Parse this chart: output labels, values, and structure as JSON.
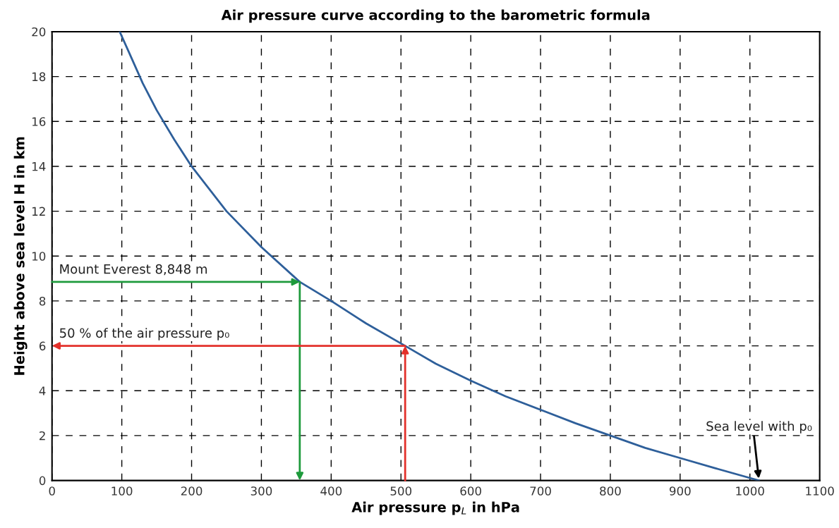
{
  "chart_data": {
    "type": "line",
    "title": "Air pressure curve according to the barometric formula",
    "xlabel": "Air pressure p$_{L}$ in hPa",
    "ylabel": "Height above sea level H in km",
    "series": [
      {
        "color": "#2e5f9a",
        "x": [
          97,
          110,
          120,
          130,
          150,
          175,
          200,
          250,
          300,
          355,
          400,
          450,
          506,
          550,
          600,
          650,
          700,
          750,
          800,
          850,
          900,
          950,
          1013
        ],
        "values": [
          20,
          19.1,
          18.4,
          17.7,
          16.5,
          15.2,
          14.0,
          12.0,
          10.4,
          8.85,
          8.0,
          7.0,
          6.0,
          5.2,
          4.45,
          3.75,
          3.15,
          2.55,
          2.0,
          1.45,
          1.0,
          0.55,
          0
        ]
      }
    ],
    "xlim": [
      0,
      1100
    ],
    "xticks": [
      0,
      100,
      200,
      300,
      400,
      500,
      600,
      700,
      800,
      900,
      1000,
      1100
    ],
    "ylim": [
      0,
      20
    ],
    "yticks": [
      0,
      2,
      4,
      6,
      8,
      10,
      12,
      14,
      16,
      18,
      20
    ],
    "grid": true,
    "marker": "none",
    "line_style": "solid",
    "annotations": [
      {
        "text": "Mount Everest 8,848 m",
        "x": 355,
        "y": 8.848
      },
      {
        "text": "50 % of the air pressure p₀",
        "x": 506,
        "y": 6
      },
      {
        "text": "Sea level with p₀",
        "x": 1013,
        "y": 0
      }
    ]
  }
}
